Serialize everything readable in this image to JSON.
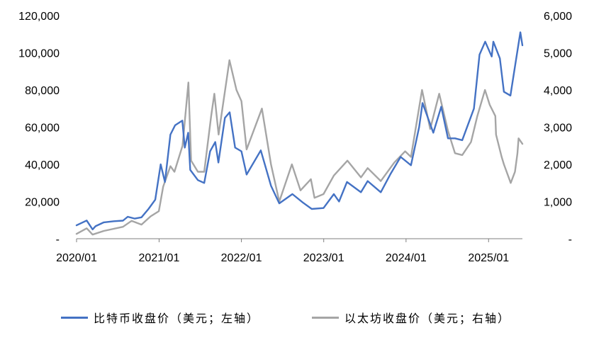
{
  "chart_data": {
    "type": "line",
    "title": "",
    "x_range": [
      "2020/01",
      "2025/05"
    ],
    "x_ticks": [
      "2020/01",
      "2021/01",
      "2022/01",
      "2023/01",
      "2024/01",
      "2025/01"
    ],
    "y_left": {
      "range": [
        0,
        120000
      ],
      "ticks": [
        "-",
        "20,000",
        "40,000",
        "60,000",
        "80,000",
        "100,000",
        "120,000"
      ]
    },
    "y_right": {
      "range": [
        0,
        6000
      ],
      "ticks": [
        "-",
        "1,000",
        "2,000",
        "3,000",
        "4,000",
        "5,000",
        "6,000"
      ]
    },
    "legend_position": "bottom",
    "grid": false,
    "series": [
      {
        "name": "比特币收盘价（美元；左轴）",
        "axis": "left",
        "color": "#4472c4",
        "points": [
          [
            "2020-01-01",
            7200
          ],
          [
            "2020-02-15",
            9800
          ],
          [
            "2020-03-12",
            5000
          ],
          [
            "2020-03-25",
            6700
          ],
          [
            "2020-05-01",
            8800
          ],
          [
            "2020-06-15",
            9400
          ],
          [
            "2020-07-25",
            9700
          ],
          [
            "2020-08-15",
            11800
          ],
          [
            "2020-09-15",
            10800
          ],
          [
            "2020-10-15",
            11500
          ],
          [
            "2020-11-15",
            16000
          ],
          [
            "2020-12-15",
            21000
          ],
          [
            "2021-01-08",
            40000
          ],
          [
            "2021-01-27",
            30500
          ],
          [
            "2021-02-20",
            56000
          ],
          [
            "2021-03-13",
            61000
          ],
          [
            "2021-04-14",
            63500
          ],
          [
            "2021-04-25",
            49000
          ],
          [
            "2021-05-10",
            57000
          ],
          [
            "2021-05-19",
            37000
          ],
          [
            "2021-06-22",
            31500
          ],
          [
            "2021-07-20",
            30000
          ],
          [
            "2021-08-15",
            47000
          ],
          [
            "2021-09-07",
            52000
          ],
          [
            "2021-09-21",
            41000
          ],
          [
            "2021-10-20",
            65000
          ],
          [
            "2021-11-10",
            68000
          ],
          [
            "2021-12-04",
            49000
          ],
          [
            "2022-01-01",
            47000
          ],
          [
            "2022-01-24",
            34500
          ],
          [
            "2022-03-28",
            47500
          ],
          [
            "2022-05-12",
            28500
          ],
          [
            "2022-06-18",
            19000
          ],
          [
            "2022-08-15",
            24000
          ],
          [
            "2022-09-30",
            19500
          ],
          [
            "2022-11-09",
            16000
          ],
          [
            "2022-12-31",
            16500
          ],
          [
            "2023-02-15",
            24000
          ],
          [
            "2023-03-10",
            20000
          ],
          [
            "2023-04-14",
            30500
          ],
          [
            "2023-06-15",
            25000
          ],
          [
            "2023-07-15",
            31000
          ],
          [
            "2023-09-11",
            25000
          ],
          [
            "2023-10-25",
            35000
          ],
          [
            "2023-12-08",
            44000
          ],
          [
            "2024-01-23",
            39500
          ],
          [
            "2024-02-28",
            60000
          ],
          [
            "2024-03-14",
            73000
          ],
          [
            "2024-05-01",
            57000
          ],
          [
            "2024-06-05",
            71000
          ],
          [
            "2024-07-05",
            54000
          ],
          [
            "2024-08-05",
            54000
          ],
          [
            "2024-09-06",
            53000
          ],
          [
            "2024-10-28",
            70000
          ],
          [
            "2024-11-22",
            99000
          ],
          [
            "2024-12-17",
            106000
          ],
          [
            "2025-01-15",
            98000
          ],
          [
            "2025-01-22",
            106000
          ],
          [
            "2025-02-20",
            97000
          ],
          [
            "2025-03-10",
            79000
          ],
          [
            "2025-04-08",
            77000
          ],
          [
            "2025-05-01",
            95000
          ],
          [
            "2025-05-22",
            111000
          ],
          [
            "2025-05-31",
            104000
          ]
        ]
      },
      {
        "name": "以太坊收盘价（美元；右轴）",
        "axis": "right",
        "color": "#a5a5a5",
        "points": [
          [
            "2020-01-01",
            130
          ],
          [
            "2020-02-15",
            280
          ],
          [
            "2020-03-12",
            110
          ],
          [
            "2020-05-01",
            210
          ],
          [
            "2020-07-25",
            320
          ],
          [
            "2020-09-01",
            480
          ],
          [
            "2020-10-15",
            380
          ],
          [
            "2020-11-24",
            600
          ],
          [
            "2020-12-31",
            740
          ],
          [
            "2021-01-19",
            1400
          ],
          [
            "2021-02-20",
            1950
          ],
          [
            "2021-03-10",
            1800
          ],
          [
            "2021-04-15",
            2500
          ],
          [
            "2021-05-11",
            4200
          ],
          [
            "2021-05-23",
            2100
          ],
          [
            "2021-06-22",
            1800
          ],
          [
            "2021-07-20",
            1800
          ],
          [
            "2021-08-20",
            3300
          ],
          [
            "2021-09-03",
            3900
          ],
          [
            "2021-09-22",
            2800
          ],
          [
            "2021-10-28",
            4300
          ],
          [
            "2021-11-09",
            4800
          ],
          [
            "2021-12-10",
            4000
          ],
          [
            "2022-01-01",
            3700
          ],
          [
            "2022-01-24",
            2400
          ],
          [
            "2022-04-02",
            3500
          ],
          [
            "2022-05-12",
            2000
          ],
          [
            "2022-06-18",
            1000
          ],
          [
            "2022-08-13",
            2000
          ],
          [
            "2022-09-20",
            1300
          ],
          [
            "2022-11-05",
            1600
          ],
          [
            "2022-11-21",
            1100
          ],
          [
            "2022-12-31",
            1200
          ],
          [
            "2023-02-15",
            1700
          ],
          [
            "2023-04-16",
            2100
          ],
          [
            "2023-06-15",
            1650
          ],
          [
            "2023-07-15",
            1900
          ],
          [
            "2023-09-11",
            1550
          ],
          [
            "2023-11-10",
            2050
          ],
          [
            "2023-12-28",
            2350
          ],
          [
            "2024-01-23",
            2200
          ],
          [
            "2024-03-12",
            4000
          ],
          [
            "2024-04-17",
            2950
          ],
          [
            "2024-05-27",
            3900
          ],
          [
            "2024-07-05",
            2900
          ],
          [
            "2024-08-05",
            2300
          ],
          [
            "2024-09-06",
            2250
          ],
          [
            "2024-10-15",
            2600
          ],
          [
            "2024-11-12",
            3300
          ],
          [
            "2024-12-16",
            4000
          ],
          [
            "2025-01-06",
            3600
          ],
          [
            "2025-01-31",
            3300
          ],
          [
            "2025-02-03",
            2800
          ],
          [
            "2025-02-28",
            2200
          ],
          [
            "2025-03-10",
            2000
          ],
          [
            "2025-04-09",
            1500
          ],
          [
            "2025-04-28",
            1800
          ],
          [
            "2025-05-09",
            2300
          ],
          [
            "2025-05-14",
            2700
          ],
          [
            "2025-05-31",
            2550
          ]
        ]
      }
    ]
  }
}
